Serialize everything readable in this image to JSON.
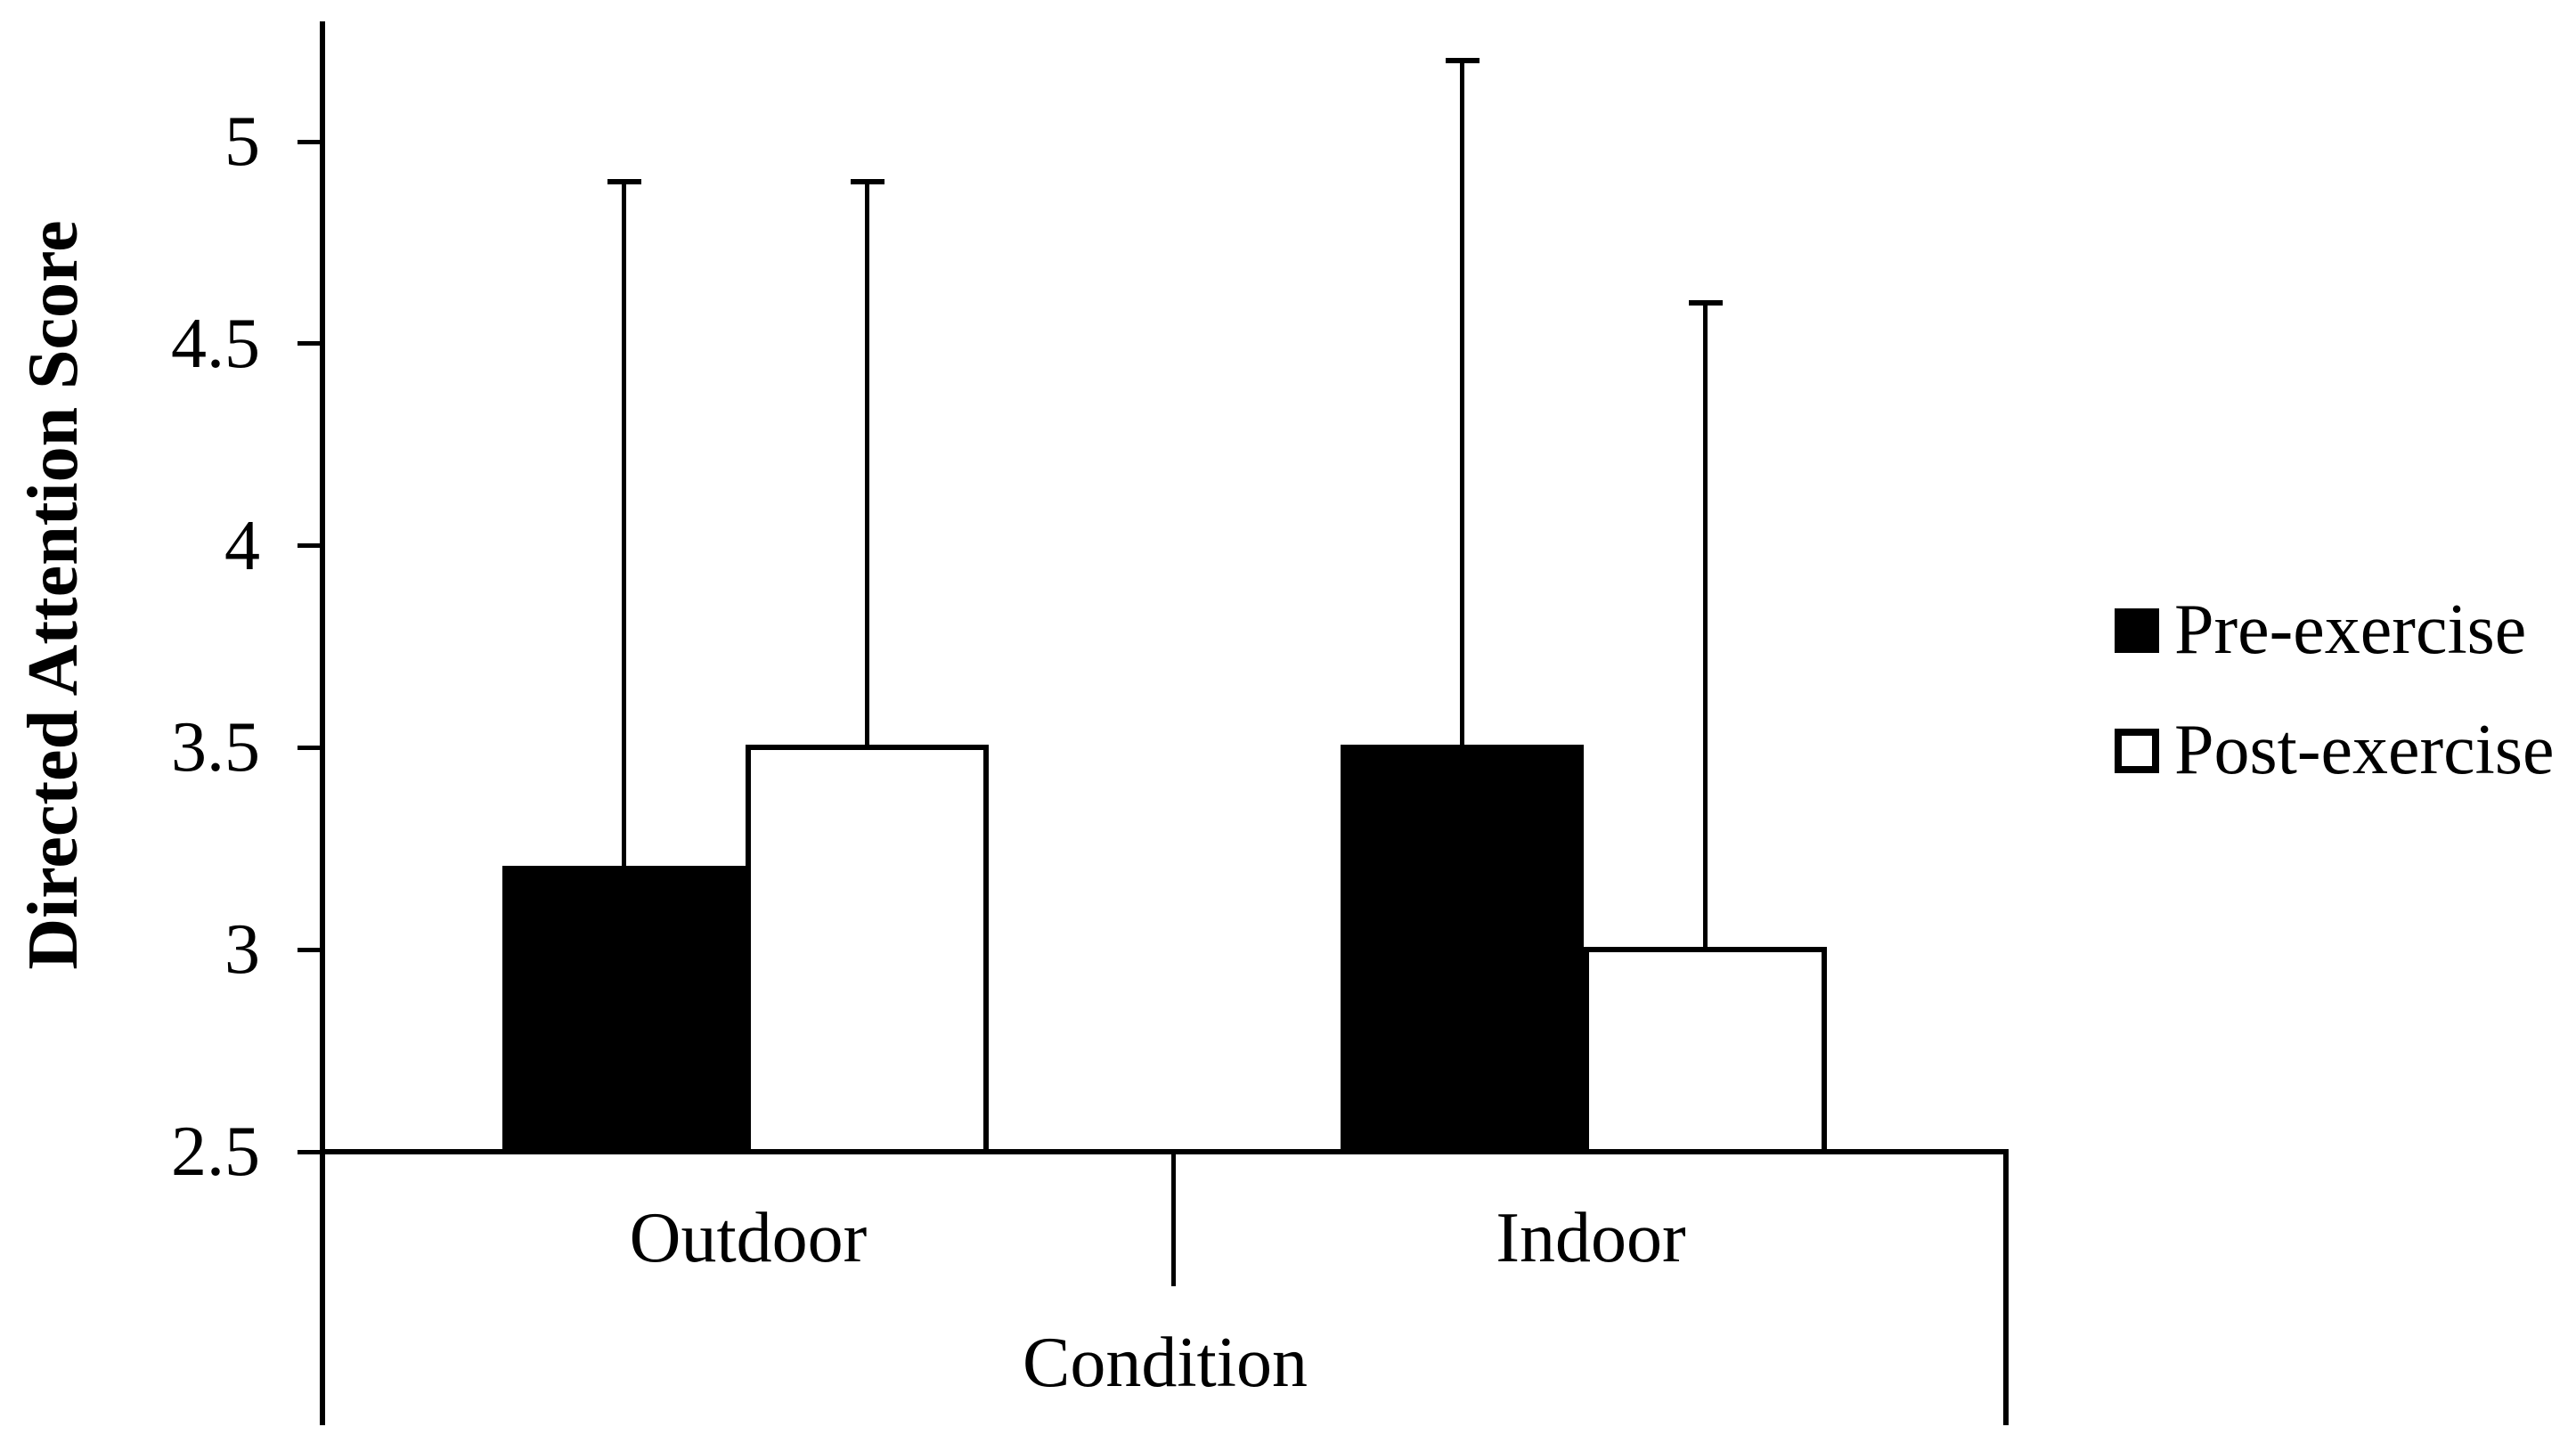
{
  "chart_data": {
    "type": "bar",
    "title": "",
    "xlabel": "Condition",
    "ylabel": "Directed Attention Score",
    "categories": [
      "Outdoor",
      "Indoor"
    ],
    "series": [
      {
        "name": "Pre-exercise",
        "fill": "#000000",
        "values": [
          3.2,
          3.5
        ],
        "error_tops": [
          4.9,
          5.2
        ]
      },
      {
        "name": "Post-exercise",
        "fill": "#ffffff",
        "values": [
          3.5,
          3.0
        ],
        "error_tops": [
          4.9,
          4.6
        ]
      }
    ],
    "yticks": [
      2.5,
      3,
      3.5,
      4,
      4.5,
      5
    ],
    "ylim": [
      2.5,
      5.3
    ],
    "grid": false,
    "error_bars": "upper-only",
    "legend_position": "right",
    "colors": {
      "foreground": "#000000",
      "background": "#ffffff"
    }
  }
}
